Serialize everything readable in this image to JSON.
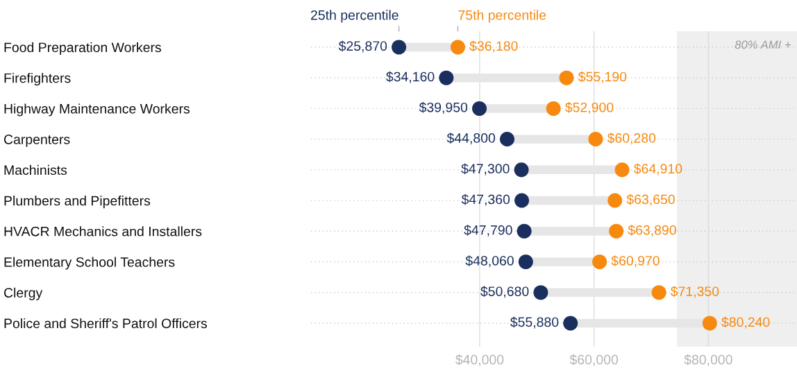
{
  "chart_data": {
    "type": "scatter",
    "orientation": "horizontal",
    "categories": [
      "Food Preparation Workers",
      "Firefighters",
      "Highway Maintenance Workers",
      "Carpenters",
      "Machinists",
      "Plumbers and Pipefitters",
      "HVACR Mechanics and Installers",
      "Elementary School Teachers",
      "Clergy",
      "Police and Sheriff's Patrol Officers"
    ],
    "series": [
      {
        "name": "25th percentile",
        "color": "#1b2f5e",
        "values": [
          25870,
          34160,
          39950,
          44800,
          47300,
          47360,
          47790,
          48060,
          50680,
          55880
        ],
        "value_labels": [
          "$25,870",
          "$34,160",
          "$39,950",
          "$44,800",
          "$47,300",
          "$47,360",
          "$47,790",
          "$48,060",
          "$50,680",
          "$55,880"
        ]
      },
      {
        "name": "75th percentile",
        "color": "#f7890f",
        "values": [
          36180,
          55190,
          52900,
          60280,
          64910,
          63650,
          63890,
          60970,
          71350,
          80240
        ],
        "value_labels": [
          "$36,180",
          "$55,190",
          "$52,900",
          "$60,280",
          "$64,910",
          "$63,650",
          "$63,890",
          "$60,970",
          "$71,350",
          "$80,240"
        ]
      }
    ],
    "xlim": [
      10500,
      95500
    ],
    "xticks": [
      {
        "value": 40000,
        "label": "$40,000"
      },
      {
        "value": 60000,
        "label": "$60,000"
      },
      {
        "value": 80000,
        "label": "$80,000"
      }
    ],
    "tick_labels": "x",
    "bands": [
      {
        "axis": "x",
        "from": 74500,
        "to": 95500,
        "label": "80% AMI +",
        "color": "#efefef"
      }
    ],
    "grid": true,
    "legend": false,
    "marker": "circle"
  }
}
